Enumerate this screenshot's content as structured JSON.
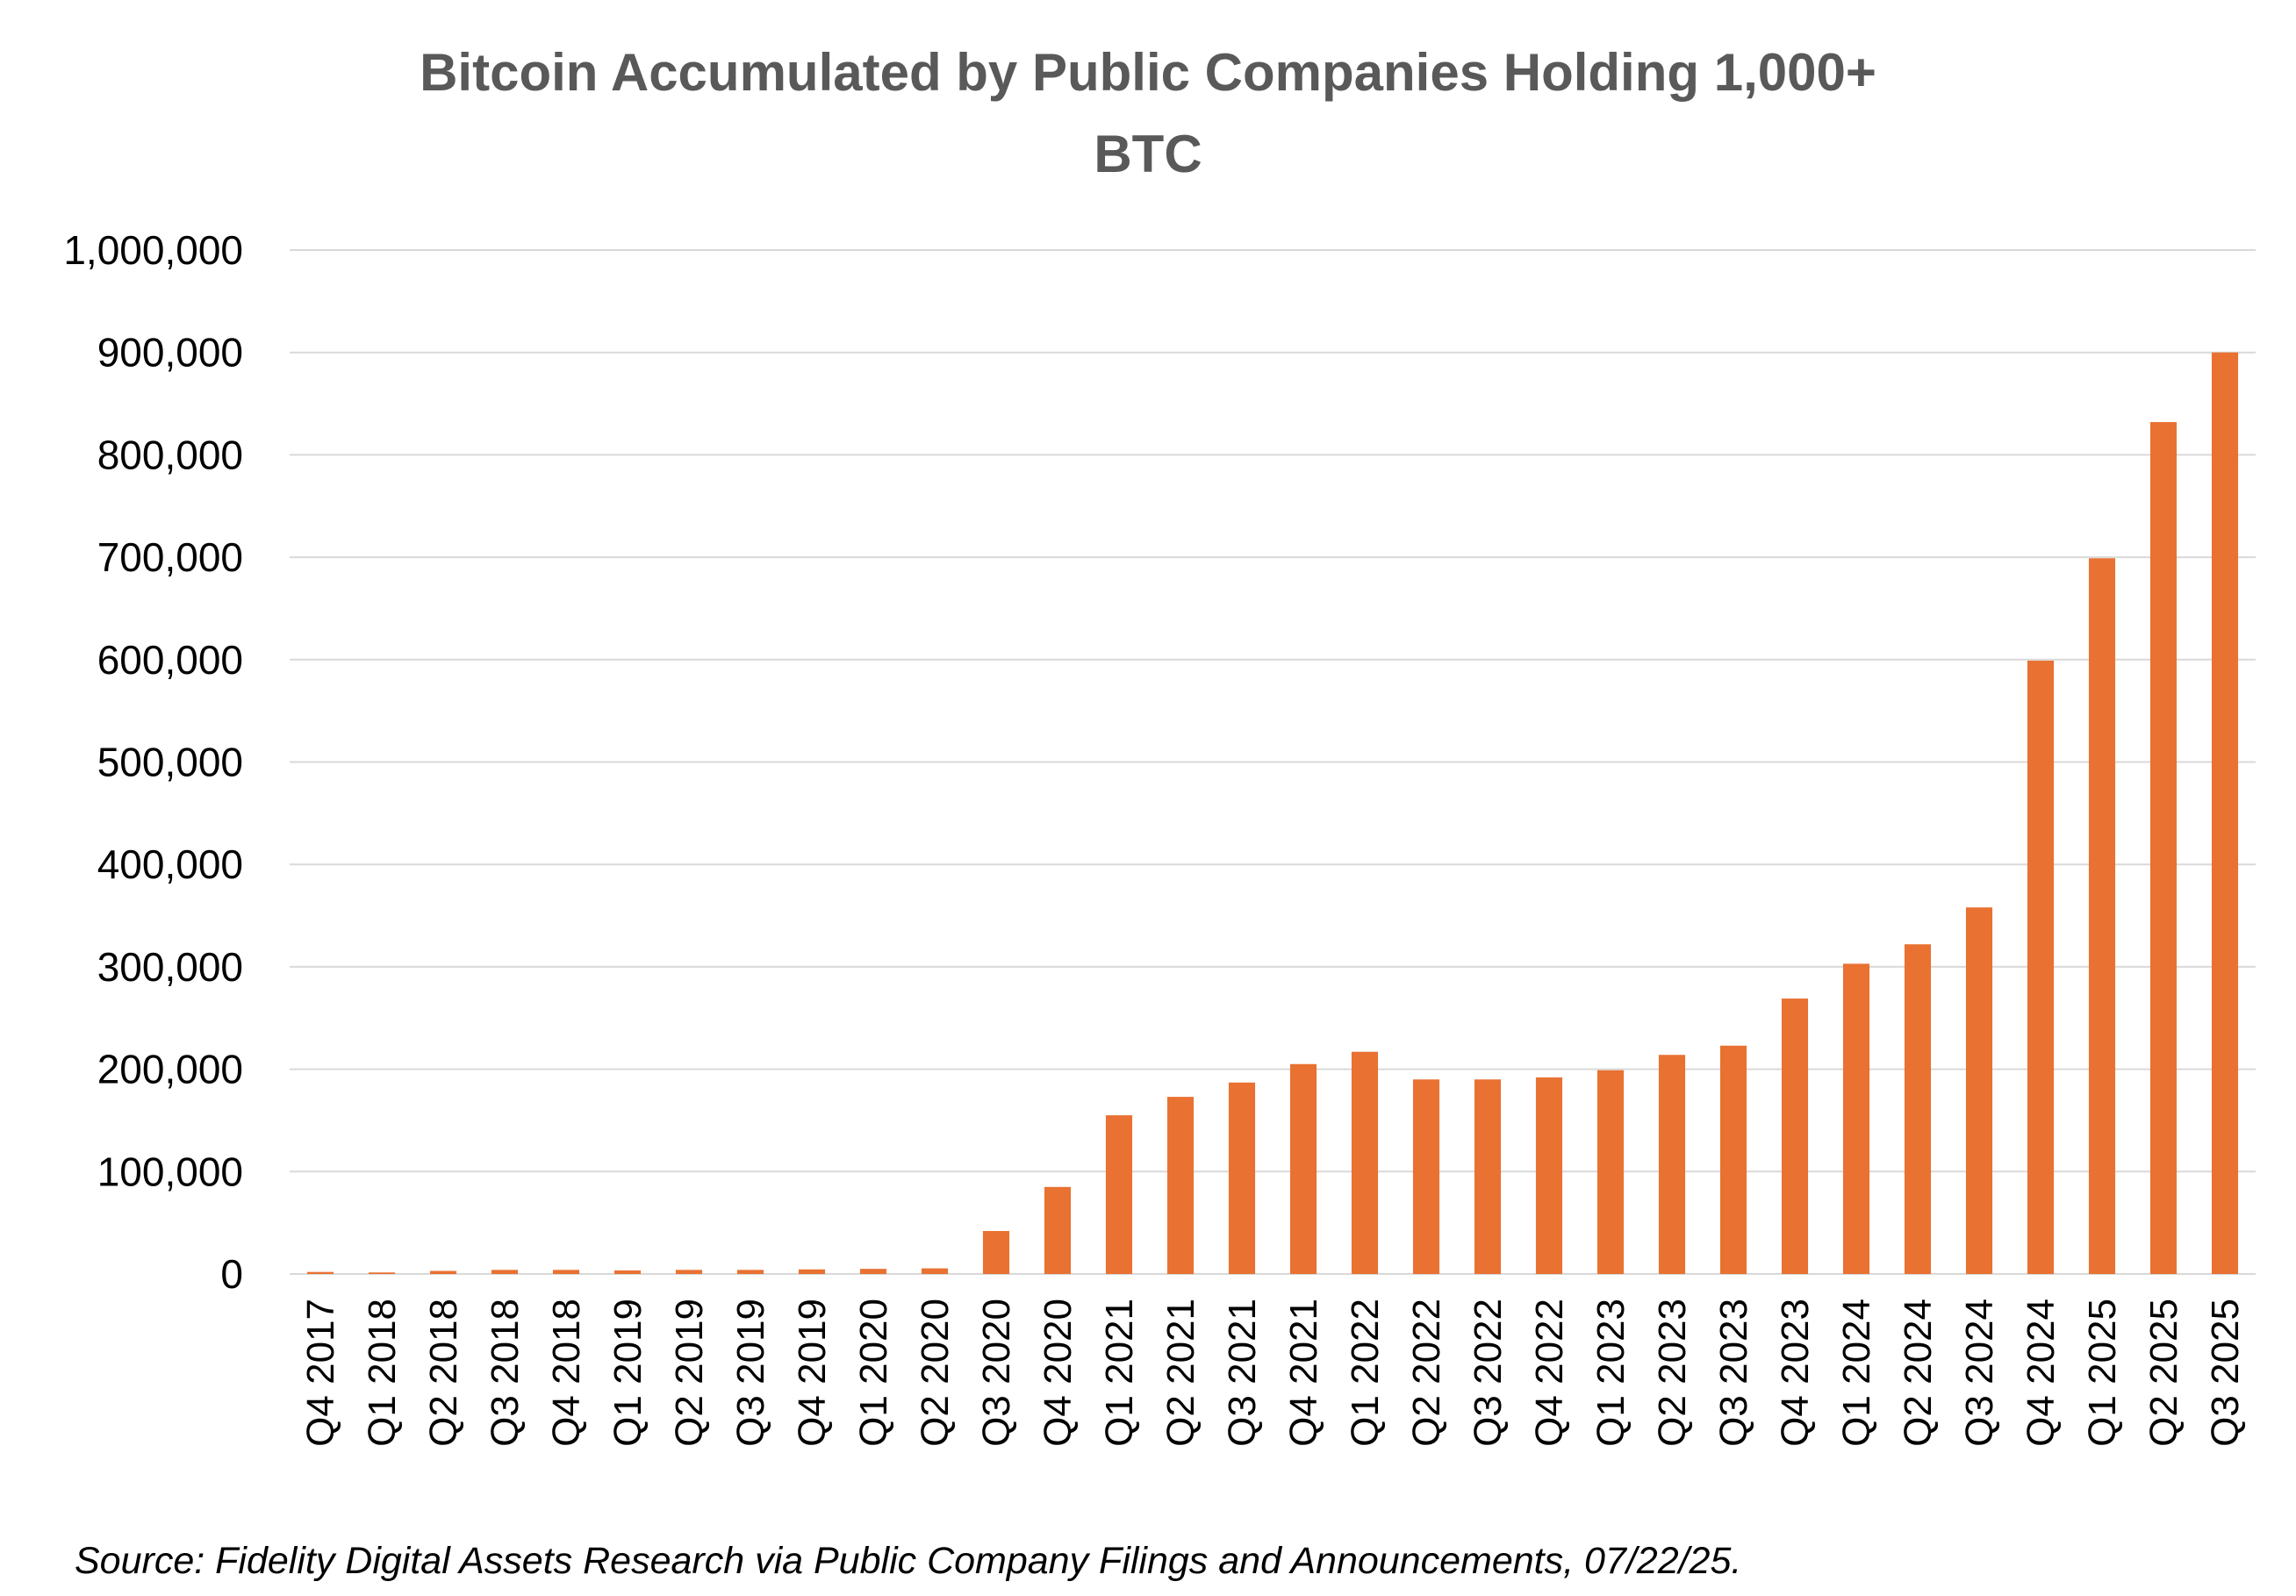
{
  "chart_data": {
    "type": "bar",
    "title_lines": [
      "Bitcoin Accumulated by Public Companies Holding 1,000+",
      "BTC"
    ],
    "categories": [
      "Q4 2017",
      "Q1 2018",
      "Q2 2018",
      "Q3 2018",
      "Q4 2018",
      "Q1 2019",
      "Q2 2019",
      "Q3 2019",
      "Q4 2019",
      "Q1 2020",
      "Q2 2020",
      "Q3 2020",
      "Q4 2020",
      "Q1 2021",
      "Q2 2021",
      "Q3 2021",
      "Q4 2021",
      "Q1 2022",
      "Q2 2022",
      "Q3 2022",
      "Q4 2022",
      "Q1 2023",
      "Q2 2023",
      "Q3 2023",
      "Q4 2023",
      "Q1 2024",
      "Q2 2024",
      "Q3 2024",
      "Q4 2024",
      "Q1 2025",
      "Q2 2025",
      "Q3 2025"
    ],
    "values": [
      2000,
      1500,
      3000,
      4000,
      4000,
      3500,
      4000,
      4000,
      4500,
      5000,
      5500,
      42000,
      85000,
      155000,
      173000,
      187000,
      205000,
      217000,
      190000,
      190000,
      192000,
      199000,
      214000,
      223000,
      269000,
      303000,
      322000,
      358000,
      599000,
      699000,
      832000,
      900000
    ],
    "ylim": [
      0,
      1000000
    ],
    "yticks": [
      0,
      100000,
      200000,
      300000,
      400000,
      500000,
      600000,
      700000,
      800000,
      900000,
      1000000
    ],
    "ytick_labels": [
      "0",
      "100,000",
      "200,000",
      "300,000",
      "400,000",
      "500,000",
      "600,000",
      "700,000",
      "800,000",
      "900,000",
      "1,000,000"
    ],
    "xlabel": "",
    "ylabel": "",
    "grid": true,
    "bar_color": "#E97132",
    "grid_color": "#D9D9D9",
    "title_color": "#595959"
  },
  "source_note": "Source: Fidelity Digital Assets Research via Public Company Filings and Announcements, 07/22/25."
}
